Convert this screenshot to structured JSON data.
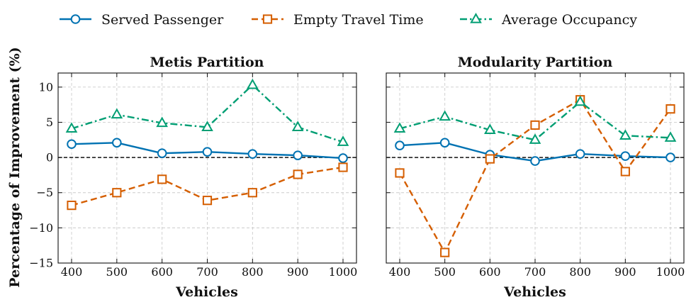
{
  "chart_data": [
    {
      "type": "line",
      "title": "Metis Partition",
      "xlabel": "Vehicles",
      "ylabel": "Percentage of Improvement (%)",
      "x": [
        400,
        500,
        600,
        700,
        800,
        900,
        1000
      ],
      "xticks": [
        "400",
        "500",
        "600",
        "700",
        "800",
        "900",
        "1000"
      ],
      "ylim": [
        -15,
        12
      ],
      "yticks": [
        -15,
        -10,
        -5,
        0,
        5,
        10
      ],
      "ytick_labels": [
        "−15",
        "−10",
        "−5",
        "0",
        "5",
        "10"
      ],
      "grid": true,
      "reference_line": 0,
      "series": [
        {
          "name": "Served Passenger",
          "values": [
            1.9,
            2.1,
            0.6,
            0.8,
            0.5,
            0.3,
            -0.1
          ]
        },
        {
          "name": "Empty Travel Time",
          "values": [
            -6.8,
            -5.0,
            -3.1,
            -6.1,
            -5.0,
            -2.4,
            -1.4
          ]
        },
        {
          "name": "Average Occupancy",
          "values": [
            4.1,
            6.1,
            4.9,
            4.3,
            10.3,
            4.3,
            2.2
          ]
        }
      ]
    },
    {
      "type": "line",
      "title": "Modularity Partition",
      "xlabel": "Vehicles",
      "x": [
        400,
        500,
        600,
        700,
        800,
        900,
        1000
      ],
      "xticks": [
        "400",
        "500",
        "600",
        "700",
        "800",
        "900",
        "1000"
      ],
      "ylim": [
        -15,
        12
      ],
      "shared_y": true,
      "grid": true,
      "reference_line": 0,
      "series": [
        {
          "name": "Served Passenger",
          "values": [
            1.7,
            2.1,
            0.4,
            -0.5,
            0.5,
            0.2,
            0.0
          ]
        },
        {
          "name": "Empty Travel Time",
          "values": [
            -2.2,
            -13.5,
            -0.2,
            4.6,
            8.2,
            -2.0,
            6.9
          ]
        },
        {
          "name": "Average Occupancy",
          "values": [
            4.1,
            5.8,
            3.9,
            2.5,
            7.9,
            3.1,
            2.8
          ]
        }
      ]
    }
  ],
  "legend": {
    "placement": "top",
    "items": [
      {
        "label": "Served Passenger",
        "color": "#0072B2",
        "marker": "circle",
        "dash": "solid"
      },
      {
        "label": "Empty Travel Time",
        "color": "#D55E00",
        "marker": "square",
        "dash": "dashed"
      },
      {
        "label": "Average Occupancy",
        "color": "#009E73",
        "marker": "triangle",
        "dash": "dashdot"
      }
    ]
  }
}
